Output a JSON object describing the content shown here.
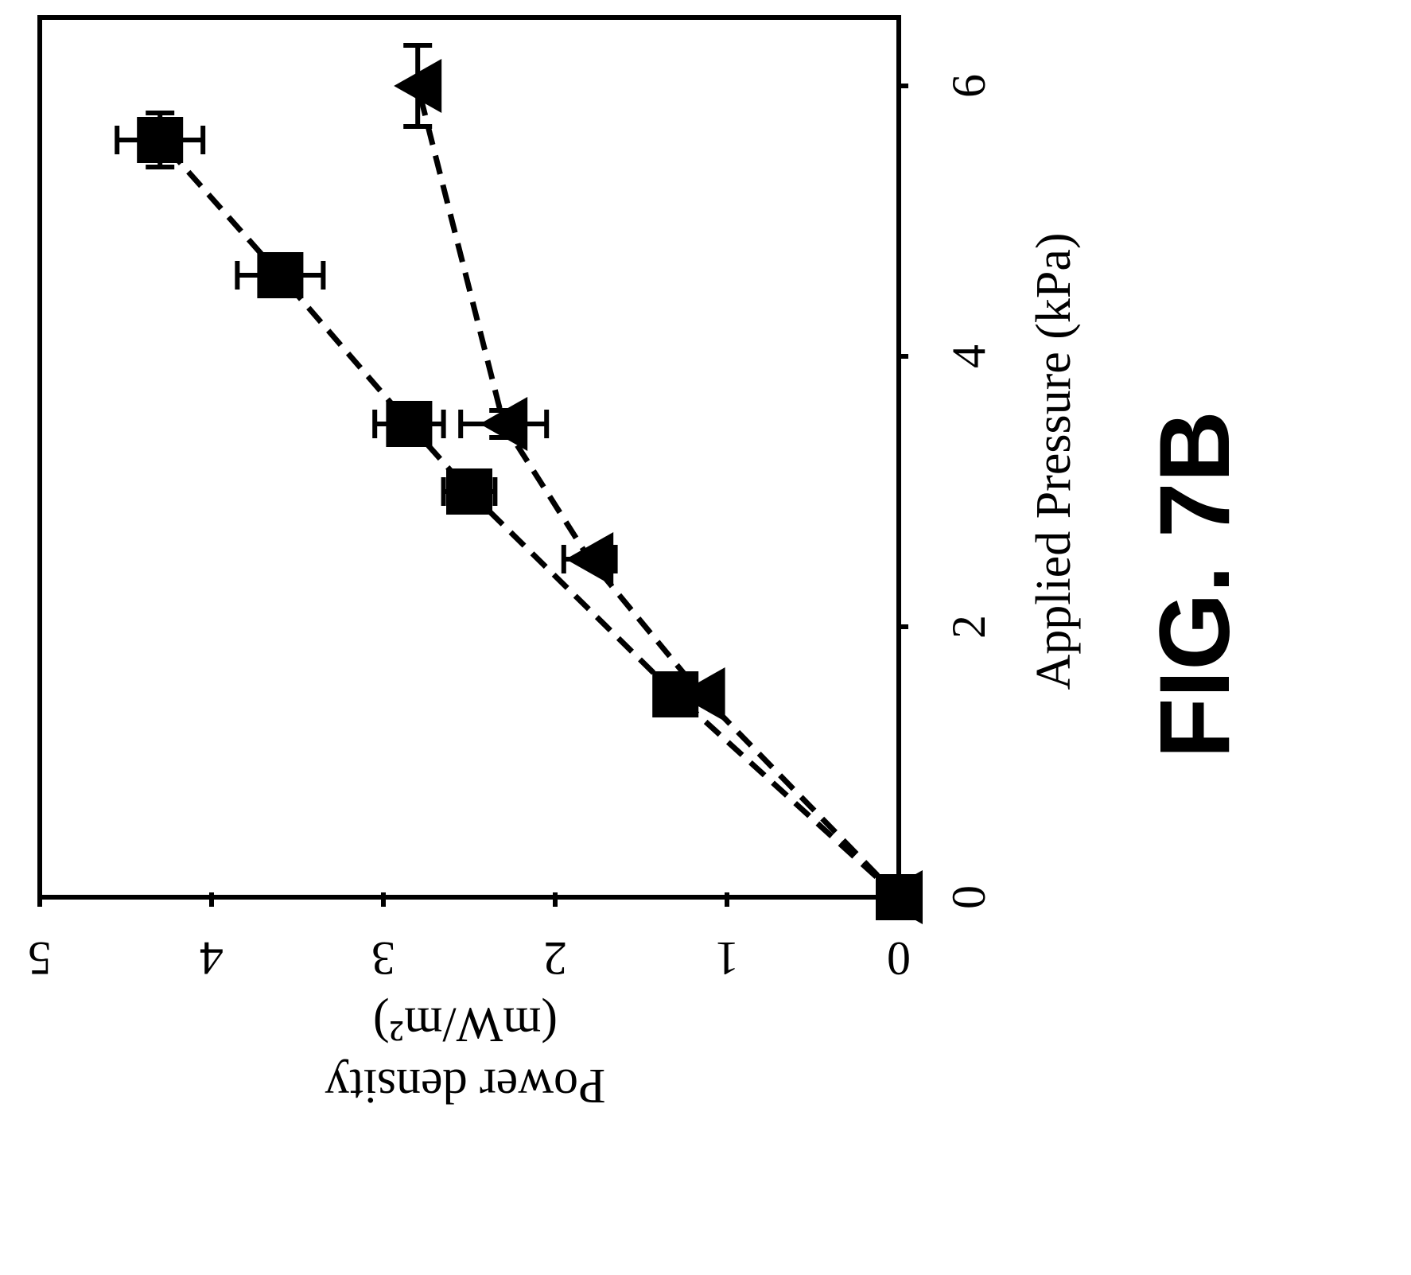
{
  "figure_label": "FIG. 7B",
  "chart_data": {
    "type": "scatter",
    "orientation": "rotated-90-clockwise",
    "xlabel": "Applied Pressure (kPa)",
    "ylabel_line1": "Power density",
    "ylabel_line2": "(mW/m²)",
    "xlim": [
      0,
      7
    ],
    "ylim": [
      0,
      5
    ],
    "x_ticks": [
      "0",
      "2",
      "4",
      "6"
    ],
    "x_tick_values": [
      0,
      2,
      4,
      6
    ],
    "y_ticks": [
      "0",
      "1",
      "2",
      "3",
      "4",
      "5"
    ],
    "y_tick_values": [
      0,
      1,
      2,
      3,
      4,
      5
    ],
    "grid": false,
    "series": [
      {
        "marker": "square",
        "points": [
          {
            "x": 0,
            "y": 0
          },
          {
            "x": 1.5,
            "y": 1.3
          },
          {
            "x": 3.0,
            "y": 2.5,
            "yerr": 0.15
          },
          {
            "x": 3.5,
            "y": 2.85,
            "xerr": 0.1,
            "yerr": 0.2
          },
          {
            "x": 4.6,
            "y": 3.6,
            "xerr": 0.15,
            "yerr": 0.25
          },
          {
            "x": 5.6,
            "y": 4.3,
            "xerr": 0.2,
            "yerr": 0.25
          }
        ]
      },
      {
        "marker": "triangle",
        "points": [
          {
            "x": 0,
            "y": 0
          },
          {
            "x": 1.5,
            "y": 1.15
          },
          {
            "x": 2.5,
            "y": 1.8,
            "yerr": 0.15
          },
          {
            "x": 3.5,
            "y": 2.3,
            "xerr": 0.1,
            "yerr": 0.25
          },
          {
            "x": 6.0,
            "y": 2.8,
            "xerr": 0.3
          }
        ]
      }
    ]
  }
}
